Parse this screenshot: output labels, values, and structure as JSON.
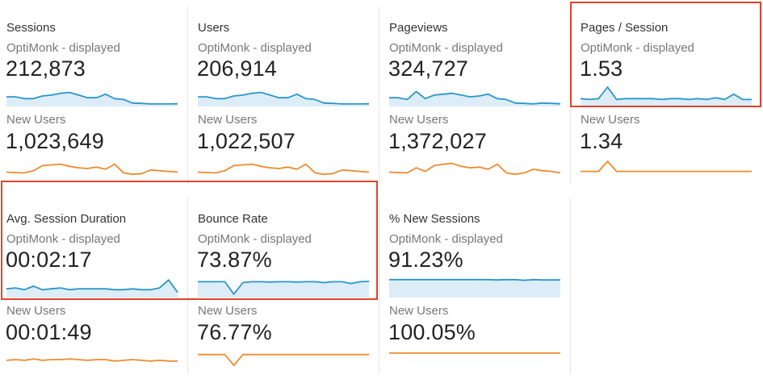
{
  "colors": {
    "segment_line": "#2b97c9",
    "segment_fill": "#dcedf8",
    "new_users_line": "#f08a2e",
    "highlight": "#e0432a",
    "separator": "#e6e6e6"
  },
  "segment_label": "OptiMonk - displayed",
  "new_users_label": "New Users",
  "metrics": [
    {
      "name": "Sessions",
      "value": "212,873",
      "new_value": "1,023,649",
      "spark": [
        0.45,
        0.45,
        0.35,
        0.35,
        0.5,
        0.55,
        0.65,
        0.7,
        0.55,
        0.4,
        0.4,
        0.6,
        0.35,
        0.3,
        0.1,
        0.08,
        0.05,
        0.05,
        0.05,
        0.06
      ],
      "new_spark": [
        0.25,
        0.22,
        0.2,
        0.35,
        0.7,
        0.75,
        0.8,
        0.65,
        0.55,
        0.5,
        0.6,
        0.45,
        0.8,
        0.2,
        0.1,
        0.15,
        0.4,
        0.35,
        0.3,
        0.25
      ]
    },
    {
      "name": "Users",
      "value": "206,914",
      "new_value": "1,022,507",
      "spark": [
        0.45,
        0.45,
        0.35,
        0.35,
        0.5,
        0.55,
        0.65,
        0.7,
        0.55,
        0.4,
        0.4,
        0.6,
        0.35,
        0.3,
        0.1,
        0.08,
        0.05,
        0.05,
        0.05,
        0.06
      ],
      "new_spark": [
        0.25,
        0.22,
        0.2,
        0.35,
        0.7,
        0.75,
        0.8,
        0.65,
        0.55,
        0.5,
        0.6,
        0.45,
        0.8,
        0.2,
        0.1,
        0.15,
        0.4,
        0.35,
        0.3,
        0.25
      ]
    },
    {
      "name": "Pageviews",
      "value": "324,727",
      "new_value": "1,372,027",
      "spark": [
        0.4,
        0.4,
        0.3,
        0.75,
        0.35,
        0.55,
        0.6,
        0.65,
        0.55,
        0.45,
        0.5,
        0.6,
        0.35,
        0.3,
        0.1,
        0.08,
        0.05,
        0.1,
        0.08,
        0.06
      ],
      "new_spark": [
        0.25,
        0.22,
        0.2,
        0.55,
        0.3,
        0.7,
        0.8,
        0.85,
        0.65,
        0.55,
        0.6,
        0.45,
        0.8,
        0.2,
        0.1,
        0.2,
        0.45,
        0.35,
        0.3,
        0.2
      ]
    },
    {
      "name": "Pages / Session",
      "value": "1.53",
      "new_value": "1.34",
      "spark": [
        0.35,
        0.3,
        0.35,
        1.0,
        0.3,
        0.35,
        0.35,
        0.35,
        0.35,
        0.3,
        0.35,
        0.35,
        0.3,
        0.35,
        0.3,
        0.4,
        0.3,
        0.6,
        0.3,
        0.3
      ],
      "new_spark": [
        0.3,
        0.3,
        0.3,
        1.0,
        0.3,
        0.3,
        0.3,
        0.3,
        0.3,
        0.3,
        0.3,
        0.3,
        0.3,
        0.3,
        0.3,
        0.3,
        0.3,
        0.3,
        0.3,
        0.3
      ]
    },
    {
      "name": "Avg. Session Duration",
      "value": "00:02:17",
      "new_value": "00:01:49",
      "spark": [
        0.4,
        0.45,
        0.35,
        0.55,
        0.35,
        0.4,
        0.45,
        0.35,
        0.4,
        0.4,
        0.4,
        0.4,
        0.35,
        0.35,
        0.4,
        0.35,
        0.35,
        0.45,
        0.9,
        0.2
      ],
      "new_spark": [
        0.45,
        0.5,
        0.45,
        0.55,
        0.45,
        0.5,
        0.5,
        0.55,
        0.5,
        0.45,
        0.5,
        0.5,
        0.4,
        0.45,
        0.5,
        0.45,
        0.4,
        0.45,
        0.4,
        0.4
      ]
    },
    {
      "name": "Bounce Rate",
      "value": "73.87%",
      "new_value": "76.77%",
      "spark": [
        0.8,
        0.8,
        0.8,
        0.8,
        0.1,
        0.75,
        0.8,
        0.8,
        0.78,
        0.8,
        0.8,
        0.78,
        0.8,
        0.8,
        0.75,
        0.8,
        0.8,
        0.7,
        0.8,
        0.82
      ],
      "new_spark": [
        0.85,
        0.85,
        0.85,
        0.85,
        0.1,
        0.85,
        0.85,
        0.85,
        0.85,
        0.85,
        0.85,
        0.85,
        0.85,
        0.85,
        0.85,
        0.85,
        0.85,
        0.85,
        0.85,
        0.85
      ]
    },
    {
      "name": "% New Sessions",
      "value": "91.23%",
      "new_value": "100.05%",
      "spark": [
        0.92,
        0.92,
        0.92,
        0.92,
        0.92,
        0.92,
        0.92,
        0.92,
        0.92,
        0.92,
        0.92,
        0.92,
        0.9,
        0.92,
        0.92,
        0.88,
        0.92,
        0.9,
        0.9,
        0.9
      ],
      "new_spark": [
        0.95,
        0.95,
        0.95,
        0.95,
        0.95,
        0.95,
        0.95,
        0.95,
        0.95,
        0.95,
        0.95,
        0.95,
        0.95,
        0.95,
        0.95,
        0.95,
        0.95,
        0.95,
        0.95,
        0.95
      ]
    }
  ]
}
